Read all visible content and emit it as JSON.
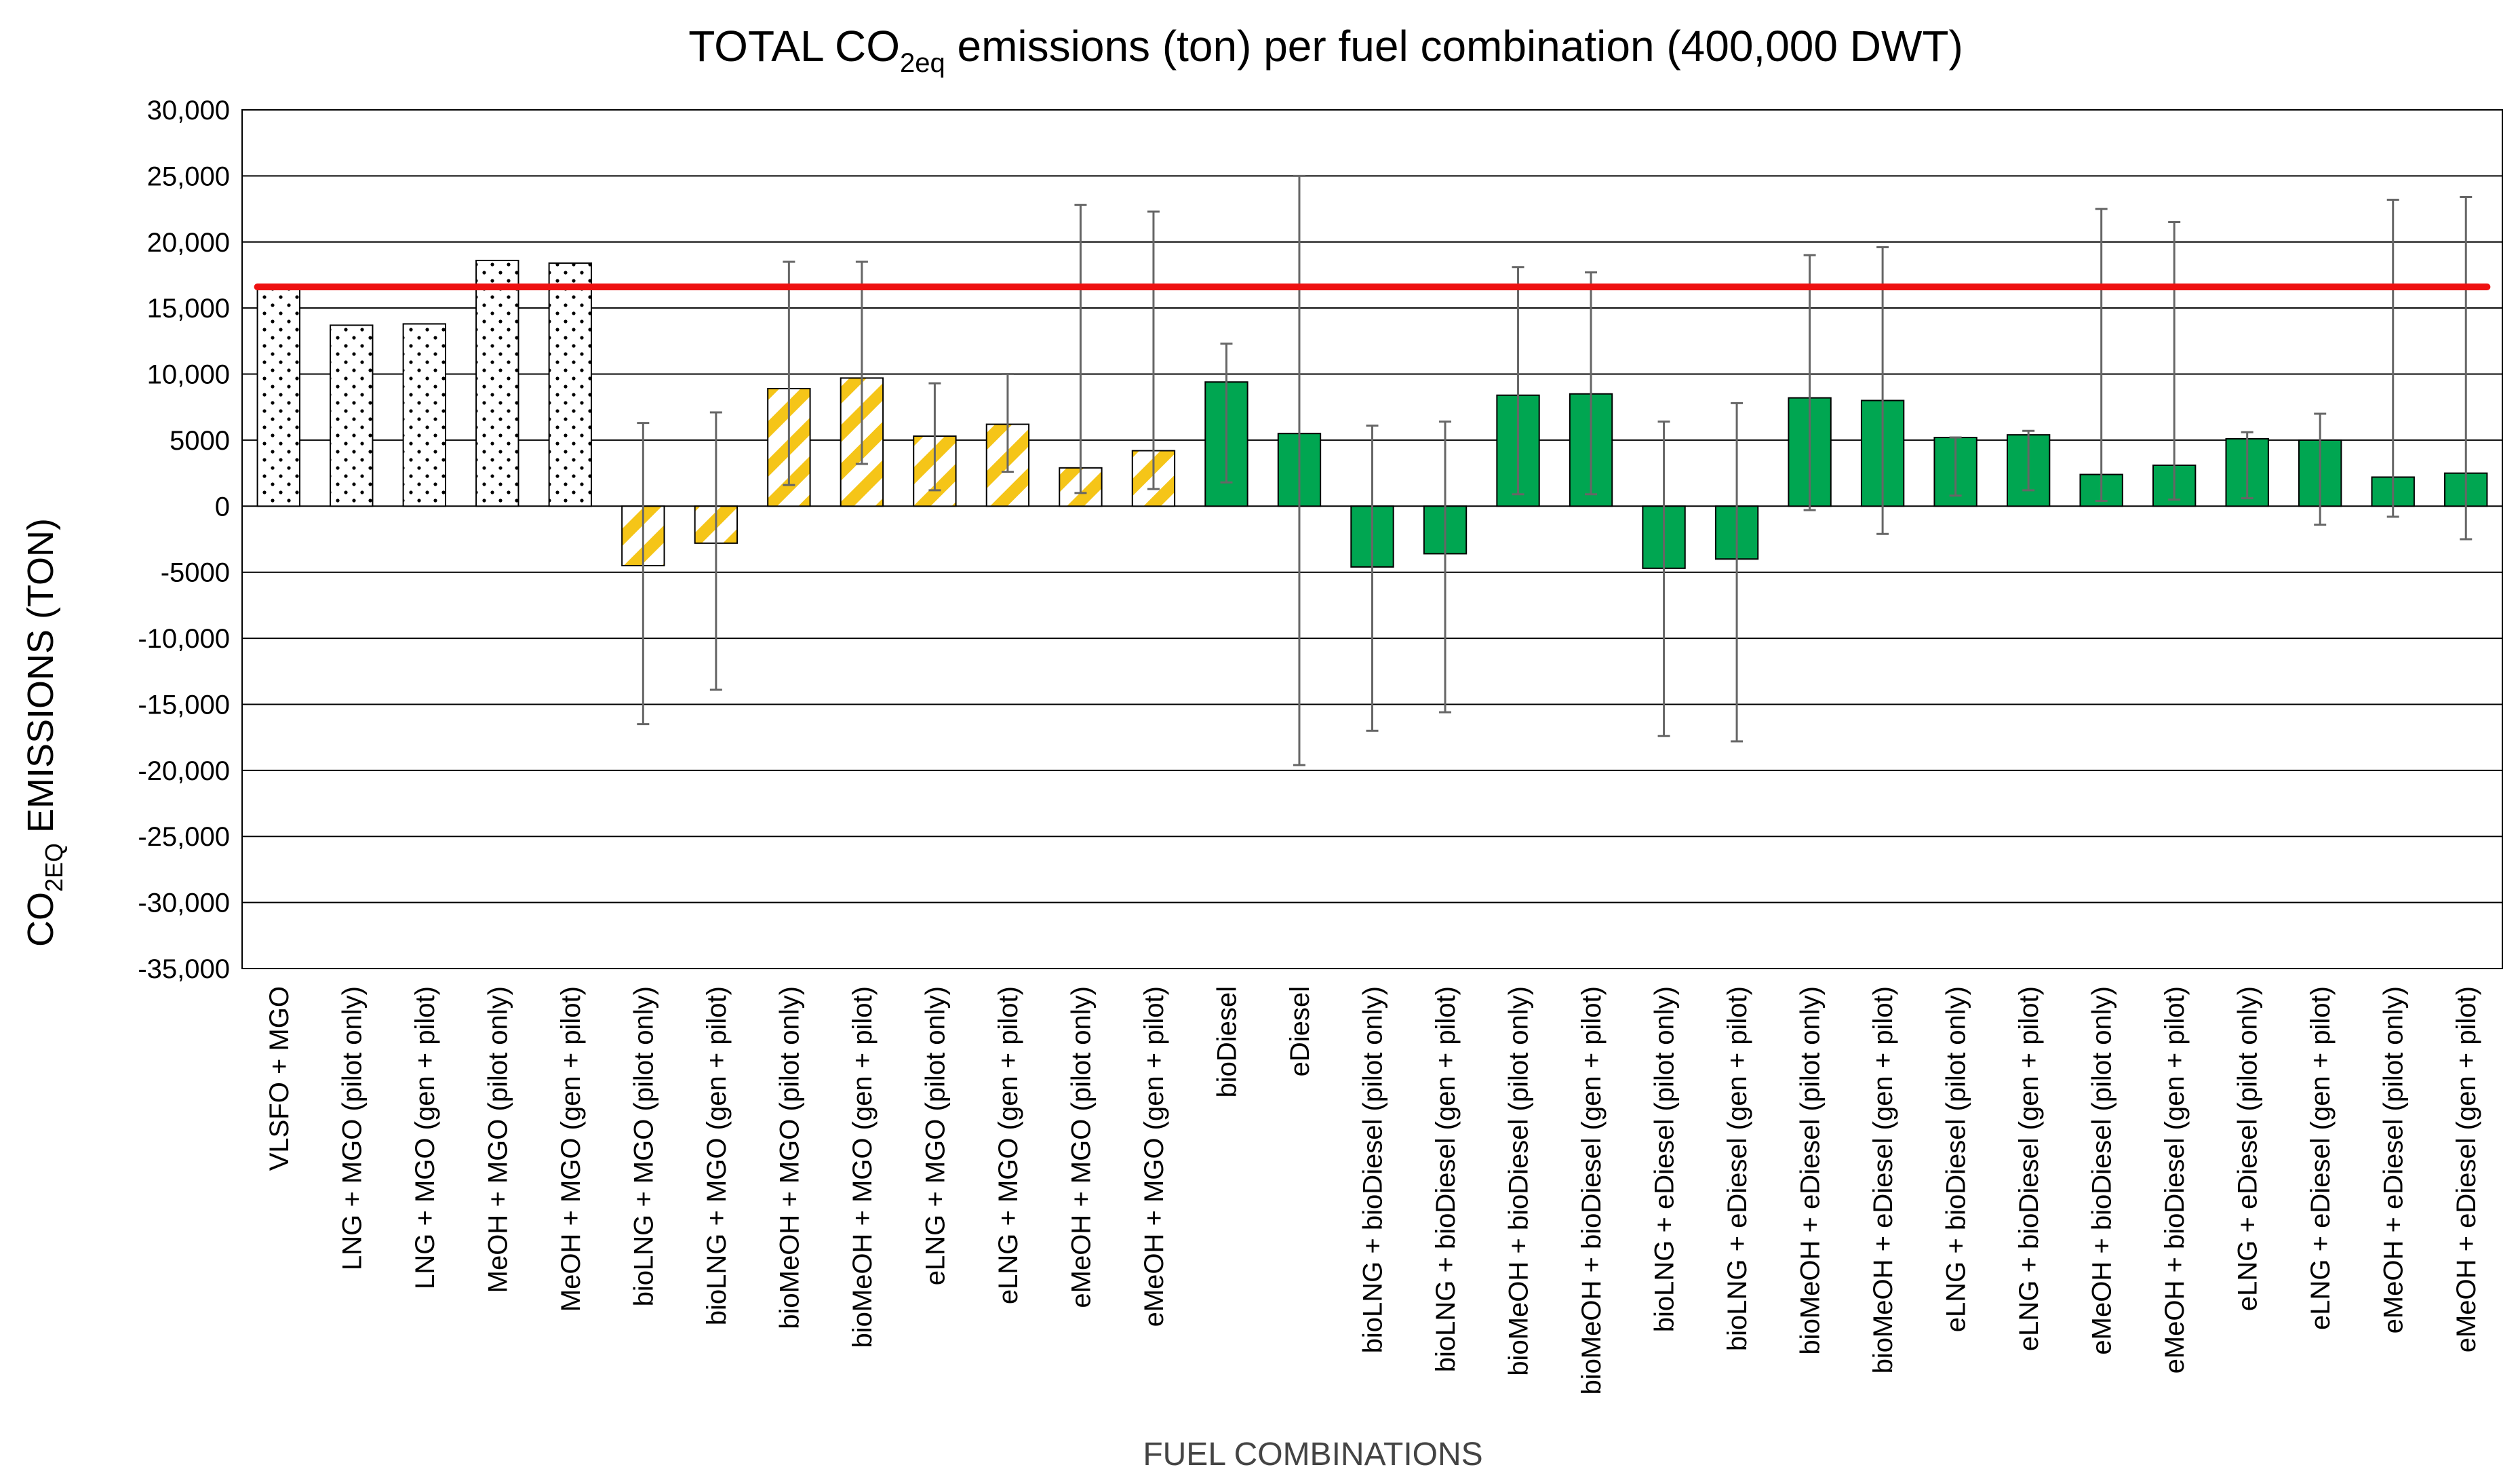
{
  "chart_data": {
    "type": "bar",
    "title_main": "TOTAL CO",
    "title_sub": "2eq",
    "title_rest": " emissions (ton) per fuel combination (400,000 DWT)",
    "ylabel_main": "CO",
    "ylabel_sub": "2EQ",
    "ylabel_rest": " EMISSIONS (TON)",
    "xlabel": "FUEL COMBINATIONS",
    "ylim": [
      -35000,
      30000
    ],
    "yticks": [
      30000,
      25000,
      20000,
      15000,
      10000,
      5000,
      0,
      -5000,
      -10000,
      -15000,
      -20000,
      -25000,
      -30000,
      -35000
    ],
    "ytick_labels": [
      "30,000",
      "25,000",
      "20,000",
      "15,000",
      "10,000",
      "5000",
      "0",
      "-5000",
      "-10,000",
      "-15,000",
      "-20,000",
      "-25,000",
      "-30,000",
      "-35,000"
    ],
    "grid": "horizontal",
    "reference_line": {
      "value": 16600,
      "color": "#ee1111"
    },
    "colors": {
      "dotted_fill": "#ffffff",
      "stripe": "#f5c518",
      "green": "#00a651",
      "error": "#666666"
    },
    "categories": [
      "VLSFO + MGO",
      "LNG + MGO (pilot only)",
      "LNG + MGO (gen + pilot)",
      "MeOH + MGO (pilot only)",
      "MeOH + MGO (gen + pilot)",
      "bioLNG + MGO (pilot only)",
      "bioLNG + MGO (gen + pilot)",
      "bioMeOH + MGO (pilot only)",
      "bioMeOH + MGO (gen + pilot)",
      "eLNG + MGO (pilot only)",
      "eLNG + MGO (gen + pilot)",
      "eMeOH + MGO (pilot only)",
      "eMeOH + MGO (gen + pilot)",
      "bioDiesel",
      "eDiesel",
      "bioLNG + bioDiesel (pilot only)",
      "bioLNG + bioDiesel (gen + pilot)",
      "bioMeOH + bioDiesel (pilot only)",
      "bioMeOH + bioDiesel (gen + pilot)",
      "bioLNG + eDiesel (pilot only)",
      "bioLNG + eDiesel (gen + pilot)",
      "bioMeOH + eDiesel (pilot only)",
      "bioMeOH + eDiesel (gen + pilot)",
      "eLNG + bioDiesel (pilot only)",
      "eLNG + bioDiesel (gen + pilot)",
      "eMeOH + bioDiesel (pilot only)",
      "eMeOH + bioDiesel (gen + pilot)",
      "eLNG + eDiesel (pilot only)",
      "eLNG + eDiesel (gen + pilot)",
      "eMeOH + eDiesel (pilot only)",
      "eMeOH + eDiesel (gen + pilot)"
    ],
    "values": [
      16600,
      13700,
      13800,
      18600,
      18400,
      -4500,
      -2800,
      8900,
      9700,
      5300,
      6200,
      2900,
      4200,
      9400,
      5500,
      -4600,
      -3600,
      8400,
      8500,
      -4700,
      -4000,
      8200,
      8000,
      5200,
      5400,
      2400,
      3100,
      5100,
      5000,
      2200,
      2500
    ],
    "error_high": [
      null,
      null,
      null,
      null,
      null,
      6300,
      7100,
      18500,
      18500,
      9300,
      10000,
      22800,
      22300,
      12300,
      25000,
      6100,
      6400,
      18100,
      17700,
      6400,
      7800,
      19000,
      19600,
      5200,
      5700,
      22500,
      21500,
      5600,
      7000,
      23200,
      23400
    ],
    "error_low": [
      null,
      null,
      null,
      null,
      null,
      -16500,
      -13900,
      1600,
      3200,
      1200,
      2600,
      1000,
      1300,
      1800,
      -19600,
      -17000,
      -15600,
      900,
      900,
      -17400,
      -17800,
      -300,
      -2100,
      800,
      1200,
      400,
      500,
      600,
      -1400,
      -800,
      -2500
    ],
    "style": [
      "dotted",
      "dotted",
      "dotted",
      "dotted",
      "dotted",
      "striped",
      "striped",
      "striped",
      "striped",
      "striped",
      "striped",
      "striped",
      "striped",
      "green",
      "green",
      "green",
      "green",
      "green",
      "green",
      "green",
      "green",
      "green",
      "green",
      "green",
      "green",
      "green",
      "green",
      "green",
      "green",
      "green",
      "green"
    ]
  }
}
